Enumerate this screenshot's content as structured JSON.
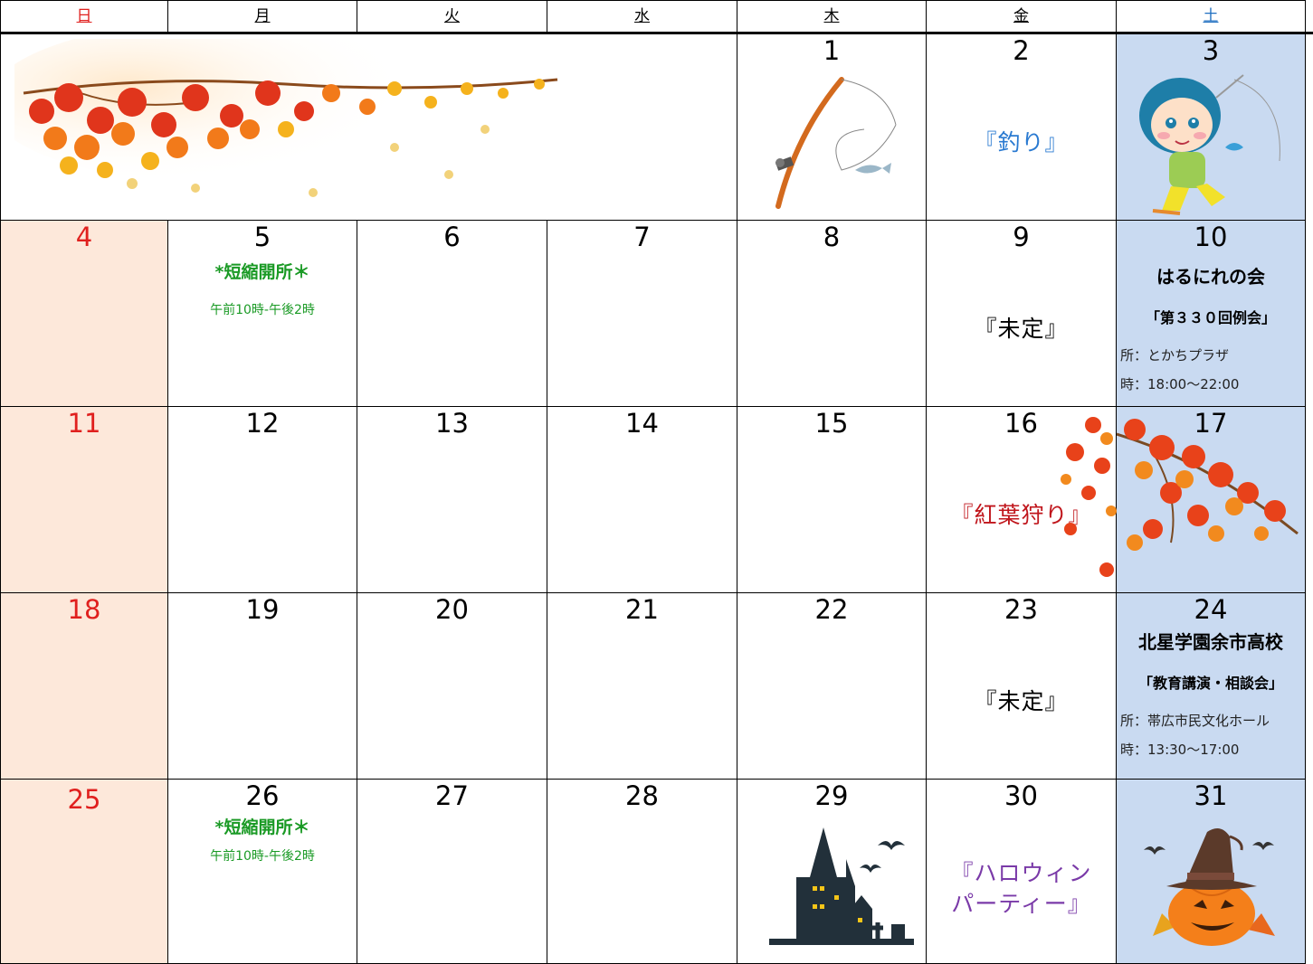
{
  "weekdays": [
    "日",
    "月",
    "火",
    "水",
    "木",
    "金",
    "土"
  ],
  "colors": {
    "sunday": "#e0201e",
    "saturday": "#1f6fc0",
    "sunday_bg": "#fde8da",
    "saturday_bg": "#c9daf1",
    "green": "#1a9a25",
    "fishing": "#2a7ad1",
    "momiji": "#c0161c",
    "halloween": "#7a3aa8"
  },
  "days": {
    "d1": "1",
    "d2": "2",
    "d3": "3",
    "d4": "4",
    "d5": "5",
    "d6": "6",
    "d7": "7",
    "d8": "8",
    "d9": "9",
    "d10": "10",
    "d11": "11",
    "d12": "12",
    "d13": "13",
    "d14": "14",
    "d15": "15",
    "d16": "16",
    "d17": "17",
    "d18": "18",
    "d19": "19",
    "d20": "20",
    "d21": "21",
    "d22": "22",
    "d23": "23",
    "d24": "24",
    "d25": "25",
    "d26": "26",
    "d27": "27",
    "d28": "28",
    "d29": "29",
    "d30": "30",
    "d31": "31"
  },
  "events": {
    "fishing": "『釣り』",
    "undecided_9": "『未定』",
    "momiji": "『紅葉狩り』",
    "undecided_23": "『未定』",
    "halloween_line1": "『ハロウィン",
    "halloween_line2": "パーティー』",
    "short_open": "*短縮開所＊",
    "short_time": "午前10時-午後2時"
  },
  "sat10": {
    "title": "はるにれの会",
    "sub": "「第３３０回例会」",
    "place": "所：とかちプラザ",
    "time": "時：18:00～22:00"
  },
  "sat24": {
    "title": "北星学園余市高校",
    "sub": "「教育講演・相談会」",
    "place": "所：帯広市民文化ホール",
    "time": "時：13:30～17:00"
  }
}
